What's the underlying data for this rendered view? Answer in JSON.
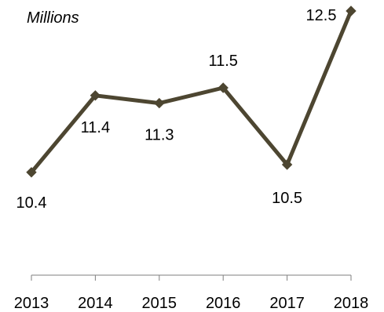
{
  "chart_data": {
    "type": "line",
    "unit_label": "Millions",
    "categories": [
      "2013",
      "2014",
      "2015",
      "2016",
      "2017",
      "2018"
    ],
    "series": [
      {
        "values": [
          10.4,
          11.4,
          11.3,
          11.5,
          10.5,
          12.5
        ]
      }
    ],
    "data_labels": [
      "10.4",
      "11.4",
      "11.3",
      "11.5",
      "10.5",
      "12.5"
    ],
    "ylim": [
      9.5,
      12.5
    ],
    "grid": false,
    "legend": "none",
    "colors": {
      "series": "#4d4631",
      "axis": "#7f7f7f"
    }
  }
}
